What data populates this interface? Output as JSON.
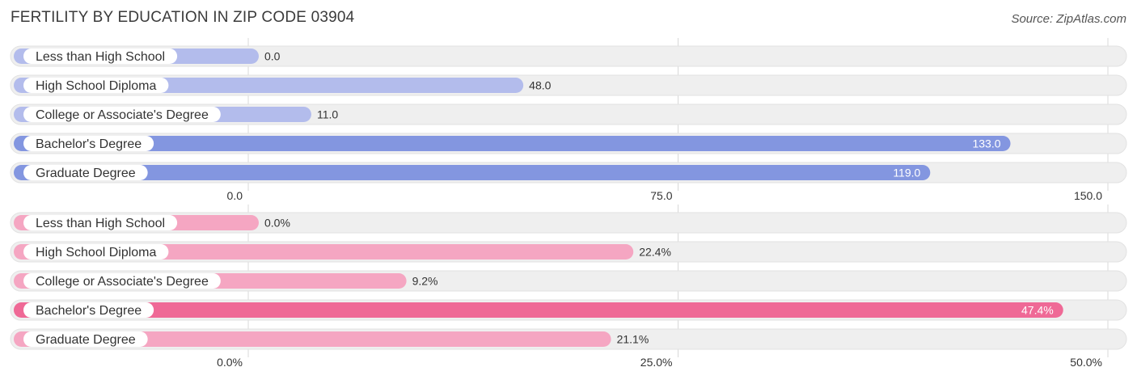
{
  "header": {
    "title": "FERTILITY BY EDUCATION IN ZIP CODE 03904",
    "source": "Source: ZipAtlas.com"
  },
  "colors": {
    "track": "#efefef",
    "grid": "#d8d8d8",
    "chart1_light": "#b3bcec",
    "chart1_dark": "#8396e0",
    "chart2_light": "#f5a6c2",
    "chart2_dark": "#ef6996"
  },
  "chart_data": [
    {
      "type": "bar",
      "orientation": "horizontal",
      "categories": [
        "Less than High School",
        "High School Diploma",
        "College or Associate's Degree",
        "Bachelor's Degree",
        "Graduate Degree"
      ],
      "values": [
        0.0,
        48.0,
        11.0,
        133.0,
        119.0
      ],
      "value_labels": [
        "0.0",
        "48.0",
        "11.0",
        "133.0",
        "119.0"
      ],
      "xlim": [
        0,
        150
      ],
      "ticks": [
        0,
        75,
        150
      ],
      "tick_labels": [
        "0.0",
        "75.0",
        "150.0"
      ]
    },
    {
      "type": "bar",
      "orientation": "horizontal",
      "categories": [
        "Less than High School",
        "High School Diploma",
        "College or Associate's Degree",
        "Bachelor's Degree",
        "Graduate Degree"
      ],
      "values": [
        0.0,
        22.4,
        9.2,
        47.4,
        21.1
      ],
      "value_labels": [
        "0.0%",
        "22.4%",
        "9.2%",
        "47.4%",
        "21.1%"
      ],
      "xlim": [
        0,
        50
      ],
      "ticks": [
        0,
        25,
        50
      ],
      "tick_labels": [
        "0.0%",
        "25.0%",
        "50.0%"
      ]
    }
  ]
}
